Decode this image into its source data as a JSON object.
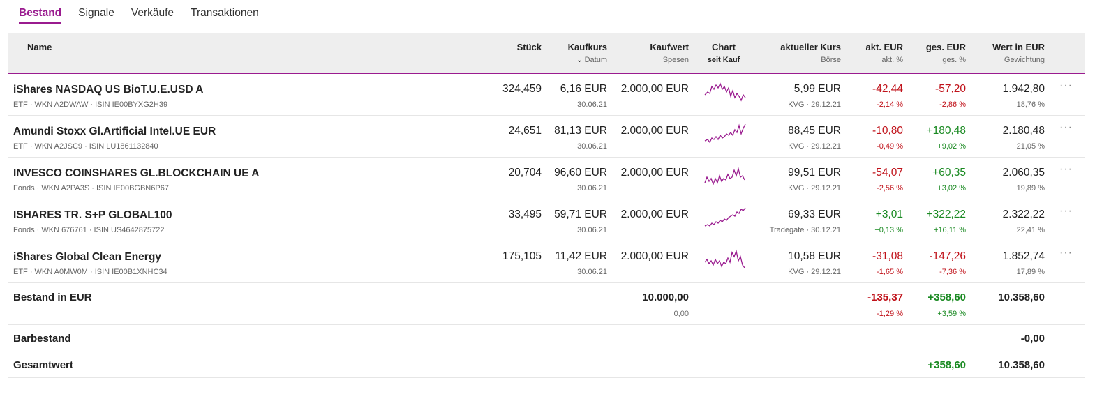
{
  "tabs": [
    "Bestand",
    "Signale",
    "Verkäufe",
    "Transaktionen"
  ],
  "colors": {
    "accent": "#9a1b8f",
    "negative": "#c0121a",
    "positive": "#1a8a22"
  },
  "header": {
    "name": "Name",
    "stueck": "Stück",
    "kaufkurs": "Kaufkurs",
    "datum": "Datum",
    "kaufwert": "Kaufwert",
    "spesen": "Spesen",
    "chart": "Chart",
    "seit_kauf": "seit Kauf",
    "aktueller_kurs": "aktueller Kurs",
    "boerse": "Börse",
    "akt_eur": "akt. EUR",
    "akt_pct": "akt. %",
    "ges_eur": "ges. EUR",
    "ges_pct": "ges. %",
    "wert": "Wert in EUR",
    "gewichtung": "Gewichtung"
  },
  "rows": [
    {
      "name": "iShares NASDAQ US BioT.U.E.USD A",
      "sub": "ETF · WKN A2DWAW · ISIN IE00BYXG2H39",
      "stueck": "324,459",
      "kaufkurs": "6,16 EUR",
      "datum": "30.06.21",
      "kaufwert": "2.000,00 EUR",
      "kurs": "5,99 EUR",
      "boerse": "KVG · 29.12.21",
      "akt_eur": "-42,44",
      "akt_pct": "-2,14 %",
      "ges_eur": "-57,20",
      "ges_pct": "-2,86 %",
      "wert": "1.942,80",
      "gewichtung": "18,76 %",
      "akt_sign": "neg",
      "ges_sign": "neg"
    },
    {
      "name": "Amundi Stoxx Gl.Artificial Intel.UE EUR",
      "sub": "ETF · WKN A2JSC9 · ISIN LU1861132840",
      "stueck": "24,651",
      "kaufkurs": "81,13 EUR",
      "datum": "30.06.21",
      "kaufwert": "2.000,00 EUR",
      "kurs": "88,45 EUR",
      "boerse": "KVG · 29.12.21",
      "akt_eur": "-10,80",
      "akt_pct": "-0,49 %",
      "ges_eur": "+180,48",
      "ges_pct": "+9,02 %",
      "wert": "2.180,48",
      "gewichtung": "21,05 %",
      "akt_sign": "neg",
      "ges_sign": "pos"
    },
    {
      "name": "INVESCO COINSHARES GL.BLOCKCHAIN UE A",
      "sub": "Fonds · WKN A2PA3S · ISIN IE00BGBN6P67",
      "stueck": "20,704",
      "kaufkurs": "96,60 EUR",
      "datum": "30.06.21",
      "kaufwert": "2.000,00 EUR",
      "kurs": "99,51 EUR",
      "boerse": "KVG · 29.12.21",
      "akt_eur": "-54,07",
      "akt_pct": "-2,56 %",
      "ges_eur": "+60,35",
      "ges_pct": "+3,02 %",
      "wert": "2.060,35",
      "gewichtung": "19,89 %",
      "akt_sign": "neg",
      "ges_sign": "pos"
    },
    {
      "name": "ISHARES TR. S+P GLOBAL100",
      "sub": "Fonds · WKN 676761 · ISIN US4642875722",
      "stueck": "33,495",
      "kaufkurs": "59,71 EUR",
      "datum": "30.06.21",
      "kaufwert": "2.000,00 EUR",
      "kurs": "69,33 EUR",
      "boerse": "Tradegate · 30.12.21",
      "akt_eur": "+3,01",
      "akt_pct": "+0,13 %",
      "ges_eur": "+322,22",
      "ges_pct": "+16,11 %",
      "wert": "2.322,22",
      "gewichtung": "22,41 %",
      "akt_sign": "pos",
      "ges_sign": "pos"
    },
    {
      "name": "iShares Global Clean Energy",
      "sub": "ETF · WKN A0MW0M · ISIN IE00B1XNHC34",
      "stueck": "175,105",
      "kaufkurs": "11,42 EUR",
      "datum": "30.06.21",
      "kaufwert": "2.000,00 EUR",
      "kurs": "10,58 EUR",
      "boerse": "KVG · 29.12.21",
      "akt_eur": "-31,08",
      "akt_pct": "-1,65 %",
      "ges_eur": "-147,26",
      "ges_pct": "-7,36 %",
      "wert": "1.852,74",
      "gewichtung": "17,89 %",
      "akt_sign": "neg",
      "ges_sign": "neg"
    }
  ],
  "bestand": {
    "label": "Bestand in EUR",
    "kaufwert": "10.000,00",
    "spesen": "0,00",
    "akt_eur": "-135,37",
    "akt_pct": "-1,29 %",
    "ges_eur": "+358,60",
    "ges_pct": "+3,59 %",
    "wert": "10.358,60"
  },
  "barbestand": {
    "label": "Barbestand",
    "wert": "-0,00"
  },
  "gesamtwert": {
    "label": "Gesamtwert",
    "ges_eur": "+358,60",
    "wert": "10.358,60"
  },
  "row_menu": "···"
}
